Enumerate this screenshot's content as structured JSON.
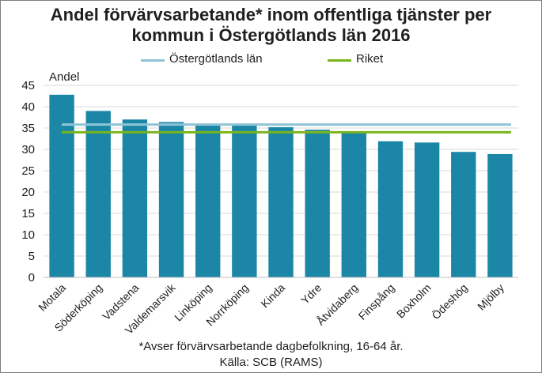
{
  "title_line1": "Andel förvärvsarbetande* inom offentliga tjänster per",
  "title_line2": "kommun i Östergötlands län 2016",
  "footnote1": "*Avser förvärvsarbetande dagbefolkning,  16-64 år.",
  "footnote2": "Källa: SCB (RAMS)",
  "colors": {
    "bar": "#1b86a6",
    "lan_line": "#8fc3d6",
    "riket_line": "#7ab51d",
    "grid": "#d9d9d9"
  },
  "chart_data": {
    "type": "bar",
    "ylabel": "Andel",
    "ylim": [
      0,
      45
    ],
    "yticks": [
      0,
      5,
      10,
      15,
      20,
      25,
      30,
      35,
      40,
      45
    ],
    "grid": true,
    "legend_position": "top",
    "categories": [
      "Motala",
      "Söderköping",
      "Vadstena",
      "Valdemarsvik",
      "Linköping",
      "Norrköping",
      "Kinda",
      "Ydre",
      "Åtvidaberg",
      "Finspång",
      "Boxholm",
      "Ödeshög",
      "Mjölby"
    ],
    "values": [
      42.8,
      39.0,
      37.0,
      36.4,
      35.7,
      35.6,
      35.2,
      34.6,
      33.8,
      31.9,
      31.6,
      29.4,
      28.9
    ],
    "reference_lines": [
      {
        "name": "Östergötlands län",
        "value": 35.8
      },
      {
        "name": "Riket",
        "value": 34.0
      }
    ]
  }
}
